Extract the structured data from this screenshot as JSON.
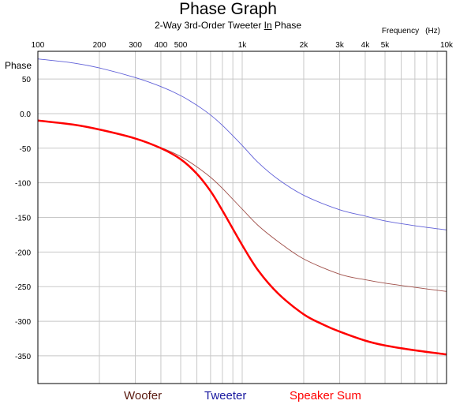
{
  "chart_data": {
    "type": "line",
    "title": "Phase Graph",
    "subtitle": {
      "before": "2-Way 3rd-Order Tweeter ",
      "underlined": "In",
      "after": " Phase"
    },
    "xlabel": {
      "name": "Frequency",
      "unit": "(Hz)"
    },
    "ylabel": "Phase",
    "x_scale": "log",
    "xlim": [
      100,
      10000
    ],
    "ylim": [
      -390,
      90
    ],
    "grid": true,
    "x_ticks": [
      {
        "value": 100,
        "label": "100"
      },
      {
        "value": 200,
        "label": "200"
      },
      {
        "value": 300,
        "label": "300"
      },
      {
        "value": 400,
        "label": "400"
      },
      {
        "value": 500,
        "label": "500"
      },
      {
        "value": 1000,
        "label": "1k"
      },
      {
        "value": 2000,
        "label": "2k"
      },
      {
        "value": 3000,
        "label": "3k"
      },
      {
        "value": 4000,
        "label": "4k"
      },
      {
        "value": 5000,
        "label": "5k"
      },
      {
        "value": 10000,
        "label": "10k"
      }
    ],
    "x_minor_grid": [
      600,
      700,
      800,
      900,
      6000,
      7000,
      8000,
      9000
    ],
    "y_ticks": [
      {
        "value": 50,
        "label": "50"
      },
      {
        "value": 0,
        "label": "0.0"
      },
      {
        "value": -50,
        "label": "-50"
      },
      {
        "value": -100,
        "label": "-100"
      },
      {
        "value": -150,
        "label": "-150"
      },
      {
        "value": -200,
        "label": "-200"
      },
      {
        "value": -250,
        "label": "-250"
      },
      {
        "value": -300,
        "label": "-300"
      },
      {
        "value": -350,
        "label": "-350"
      }
    ],
    "series": [
      {
        "name": "Woofer",
        "color": "#a0504a",
        "legend_color": "#5a1a10",
        "width": 0.9,
        "x": [
          100,
          150,
          200,
          300,
          400,
          500,
          600,
          700,
          800,
          1000,
          1200,
          1500,
          2000,
          3000,
          4000,
          5000,
          7000,
          10000
        ],
        "y": [
          -10,
          -16,
          -23,
          -36,
          -49,
          -62,
          -77,
          -92,
          -108,
          -138,
          -162,
          -185,
          -210,
          -232,
          -240,
          -245,
          -251,
          -257
        ]
      },
      {
        "name": "Tweeter",
        "color": "#6060d8",
        "legend_color": "#1a1aa0",
        "width": 0.9,
        "x": [
          100,
          150,
          200,
          300,
          400,
          500,
          600,
          700,
          800,
          1000,
          1200,
          1500,
          2000,
          3000,
          4000,
          5000,
          7000,
          10000
        ],
        "y": [
          79,
          73,
          66,
          52,
          39,
          26,
          12,
          -2,
          -17,
          -46,
          -71,
          -95,
          -118,
          -139,
          -148,
          -155,
          -162,
          -168
        ]
      },
      {
        "name": "Speaker Sum",
        "color": "#ff0000",
        "legend_color": "#ff0000",
        "width": 2.5,
        "x": [
          100,
          150,
          200,
          300,
          400,
          500,
          600,
          700,
          800,
          1000,
          1200,
          1500,
          2000,
          2500,
          3000,
          4000,
          5000,
          7000,
          10000
        ],
        "y": [
          -10,
          -16,
          -23,
          -36,
          -50,
          -66,
          -87,
          -112,
          -140,
          -190,
          -227,
          -260,
          -290,
          -305,
          -315,
          -328,
          -335,
          -342,
          -348
        ]
      }
    ],
    "legend_position": "bottom"
  }
}
